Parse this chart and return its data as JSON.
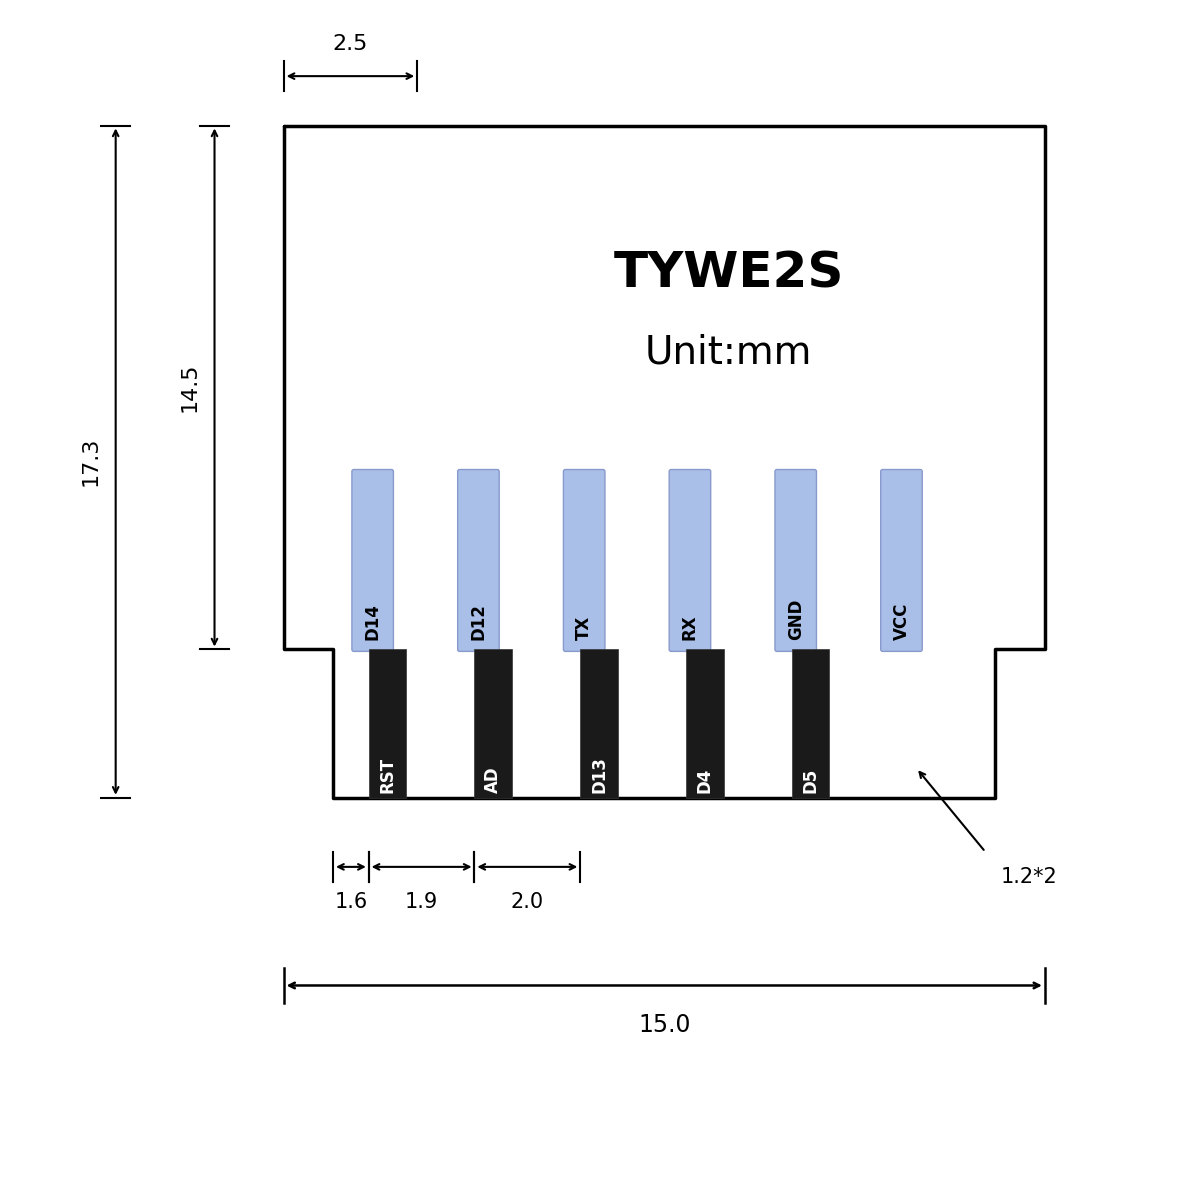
{
  "bg_color": "#ffffff",
  "line_color": "#000000",
  "title": "TYWE2S",
  "subtitle": "Unit:mm",
  "title_fontsize": 36,
  "subtitle_fontsize": 28,
  "top_pins": [
    "D14",
    "D12",
    "TX",
    "RX",
    "GND",
    "VCC"
  ],
  "bottom_pins": [
    "RST",
    "AD",
    "D13",
    "D4",
    "D5"
  ],
  "top_pin_color": "#aabfe8",
  "bottom_pin_color": "#1a1a1a",
  "top_pin_text_color": "#000000",
  "bottom_pin_text_color": "#ffffff",
  "dim_25": "2.5",
  "dim_145": "14.5",
  "dim_173": "17.3",
  "dim_16": "1.6",
  "dim_19": "1.9",
  "dim_20": "2.0",
  "dim_122": "1.2*2",
  "dim_150": "15.0"
}
